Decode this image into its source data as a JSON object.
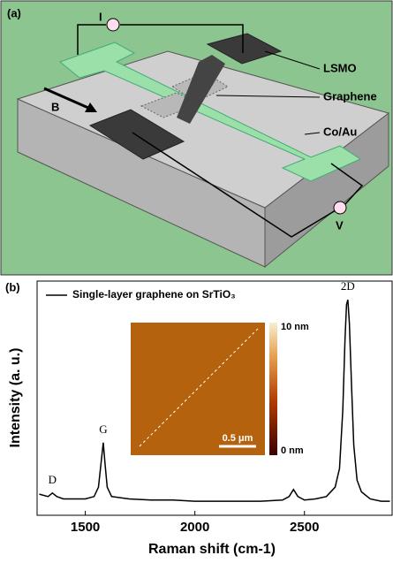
{
  "panel_a": {
    "label": "(a)",
    "current": "I",
    "lsmo": "LSMO",
    "graphene": "Graphene",
    "field": "B",
    "electrode": "Co/Au",
    "voltage": "V"
  },
  "chart_data": {
    "type": "line",
    "label": "(b)",
    "x_label": "Raman shift (cm-1)",
    "y_label": "Intensity (a. u.)",
    "xlim": [
      1280,
      2900
    ],
    "xticks": [
      1500,
      2000,
      2500
    ],
    "ylim": [
      0,
      100
    ],
    "x": [
      1290,
      1330,
      1350,
      1370,
      1400,
      1450,
      1500,
      1540,
      1560,
      1575,
      1582,
      1590,
      1600,
      1620,
      1700,
      1800,
      1900,
      2000,
      2100,
      2200,
      2300,
      2400,
      2430,
      2450,
      2470,
      2500,
      2550,
      2600,
      2640,
      2660,
      2675,
      2685,
      2692,
      2698,
      2705,
      2715,
      2725,
      2740,
      2760,
      2800,
      2850,
      2890
    ],
    "series": [
      {
        "name": "Single-layer graphene on SrTiO₃",
        "color": "#000000",
        "values": [
          9,
          8,
          9.5,
          8,
          7,
          7,
          7,
          8,
          12,
          25,
          31,
          22,
          12,
          8,
          7,
          6.5,
          6.5,
          6,
          6,
          6,
          6,
          6.5,
          8,
          11,
          8,
          6.5,
          7,
          8,
          12,
          20,
          45,
          75,
          90,
          92,
          82,
          55,
          30,
          15,
          10,
          7,
          6,
          6
        ]
      }
    ],
    "annotations": [
      {
        "text": "D",
        "x": 1350
      },
      {
        "text": "G",
        "x": 1582
      },
      {
        "text": "2D",
        "x": 2698
      }
    ],
    "inset": {
      "scale_max": "10 nm",
      "scale_min": "0 nm",
      "scale_bar": "0.5 μm"
    }
  }
}
